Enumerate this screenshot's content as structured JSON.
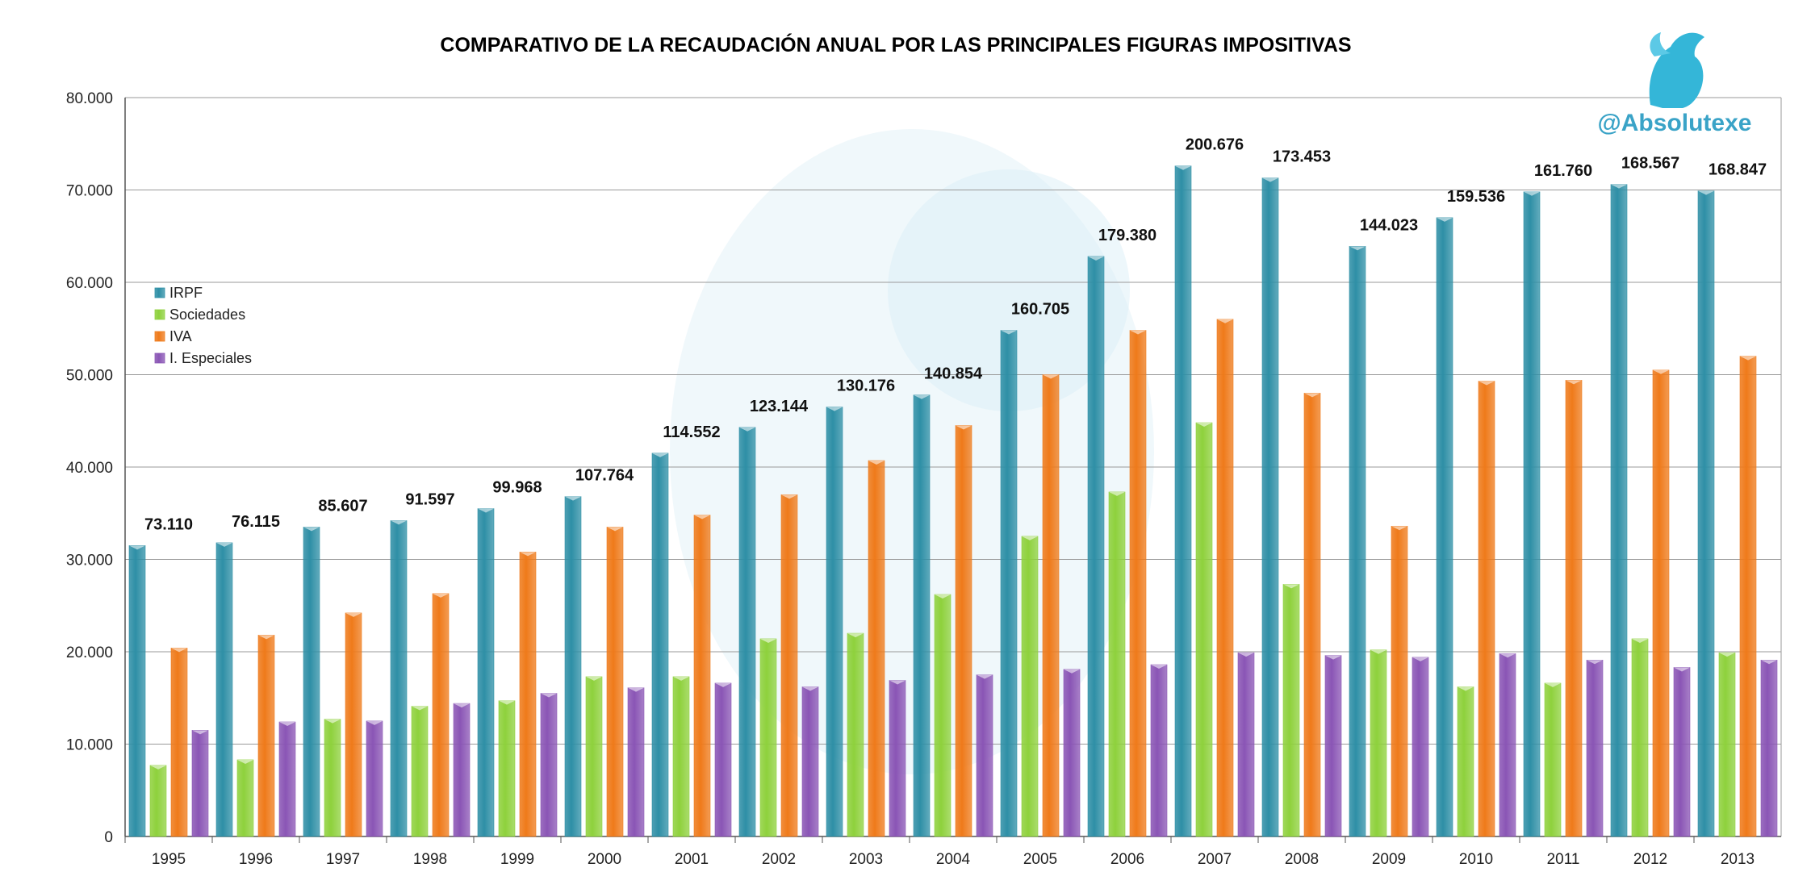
{
  "chart_data": {
    "type": "bar",
    "title": "COMPARATIVO DE LA RECAUDACIÓN ANUAL POR LAS PRINCIPALES FIGURAS IMPOSITIVAS",
    "watermark": "@Absolutexe",
    "xlabel": "",
    "ylabel": "",
    "ylim": [
      0,
      80000
    ],
    "yticks": [
      "0",
      "10.000",
      "20.000",
      "30.000",
      "40.000",
      "50.000",
      "60.000",
      "70.000",
      "80.000"
    ],
    "grid": true,
    "legend_position": "left",
    "categories": [
      "1995",
      "1996",
      "1997",
      "1998",
      "1999",
      "2000",
      "2001",
      "2002",
      "2003",
      "2004",
      "2005",
      "2006",
      "2007",
      "2008",
      "2009",
      "2010",
      "2011",
      "2012",
      "2013"
    ],
    "totals": [
      "73.110",
      "76.115",
      "85.607",
      "91.597",
      "99.968",
      "107.764",
      "114.552",
      "123.144",
      "130.176",
      "140.854",
      "160.705",
      "179.380",
      "200.676",
      "173.453",
      "144.023",
      "159.536",
      "161.760",
      "168.567",
      "168.847"
    ],
    "series": [
      {
        "name": "IRPF",
        "color": "#2e8fa6",
        "values": [
          31500,
          31800,
          33500,
          34200,
          35500,
          36800,
          41500,
          44300,
          46500,
          47800,
          54800,
          62800,
          72600,
          71300,
          63900,
          67000,
          69800,
          70600,
          69900
        ]
      },
      {
        "name": "Sociedades",
        "color": "#8ed13c",
        "values": [
          7700,
          8300,
          12700,
          14100,
          14700,
          17300,
          17300,
          21400,
          22000,
          26200,
          32500,
          37300,
          44800,
          27300,
          20200,
          16200,
          16600,
          21400,
          19900
        ]
      },
      {
        "name": "IVA",
        "color": "#ef7a1a",
        "values": [
          20400,
          21800,
          24200,
          26300,
          30800,
          33500,
          34800,
          37000,
          40700,
          44500,
          50000,
          54800,
          56000,
          48000,
          33600,
          49300,
          49400,
          50500,
          52000
        ]
      },
      {
        "name": "I. Especiales",
        "color": "#8a55b5",
        "values": [
          11500,
          12400,
          12500,
          14400,
          15500,
          16100,
          16600,
          16200,
          16900,
          17500,
          18100,
          18600,
          19900,
          19600,
          19400,
          19800,
          19100,
          18300,
          19100
        ]
      }
    ]
  }
}
